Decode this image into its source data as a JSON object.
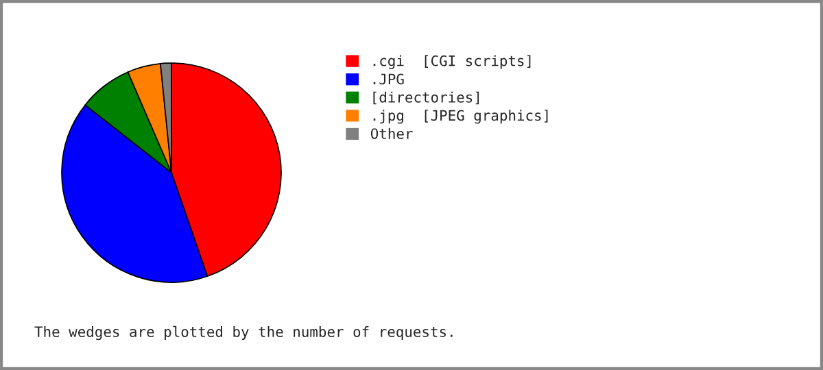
{
  "chart_data": {
    "type": "pie",
    "categories": [
      ".cgi  [CGI scripts]",
      ".JPG",
      "[directories]",
      ".jpg  [JPEG graphics]",
      "Other"
    ],
    "values": [
      44.7,
      40.9,
      7.9,
      4.9,
      1.6
    ],
    "colors": [
      "#ff0000",
      "#0000ff",
      "#008000",
      "#ff8000",
      "#808080"
    ],
    "legend": "right",
    "annotations": [
      "The wedges are plotted by the number of requests."
    ]
  }
}
